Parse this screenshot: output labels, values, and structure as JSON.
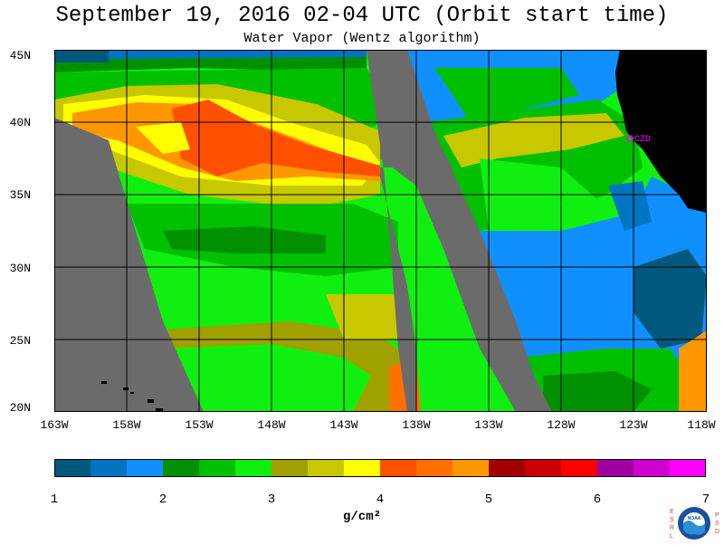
{
  "title": "September 19, 2016  02-04 UTC  (Orbit start time)",
  "subtitle": "Water Vapor (Wentz algorithm)",
  "map": {
    "lat_labels": [
      "45N",
      "40N",
      "35N",
      "30N",
      "25N",
      "20N"
    ],
    "lon_labels": [
      "163W",
      "158W",
      "153W",
      "148W",
      "143W",
      "138W",
      "133W",
      "128W",
      "123W",
      "118W"
    ],
    "station_label": "CZD",
    "colors": {
      "land": "#000000",
      "no_data": "#6b6b6b",
      "grid": "#000000",
      "station": "#ff00ff"
    }
  },
  "colorbar": {
    "tick_labels": [
      "1",
      "2",
      "3",
      "4",
      "5",
      "6",
      "7"
    ],
    "units": "g/cm²",
    "colors": [
      "#00587c",
      "#0074c0",
      "#1090ff",
      "#009000",
      "#00c000",
      "#10f010",
      "#a0a000",
      "#c8c800",
      "#ffff00",
      "#ff5000",
      "#ff7000",
      "#ff9800",
      "#a00000",
      "#c80000",
      "#ff0000",
      "#a000a0",
      "#d000d0",
      "#ff00ff"
    ]
  },
  "logo": {
    "left_letters": [
      "E",
      "S",
      "R",
      "L"
    ],
    "right_letters": [
      "P",
      "S",
      "D"
    ],
    "center_text": "NOAA"
  }
}
